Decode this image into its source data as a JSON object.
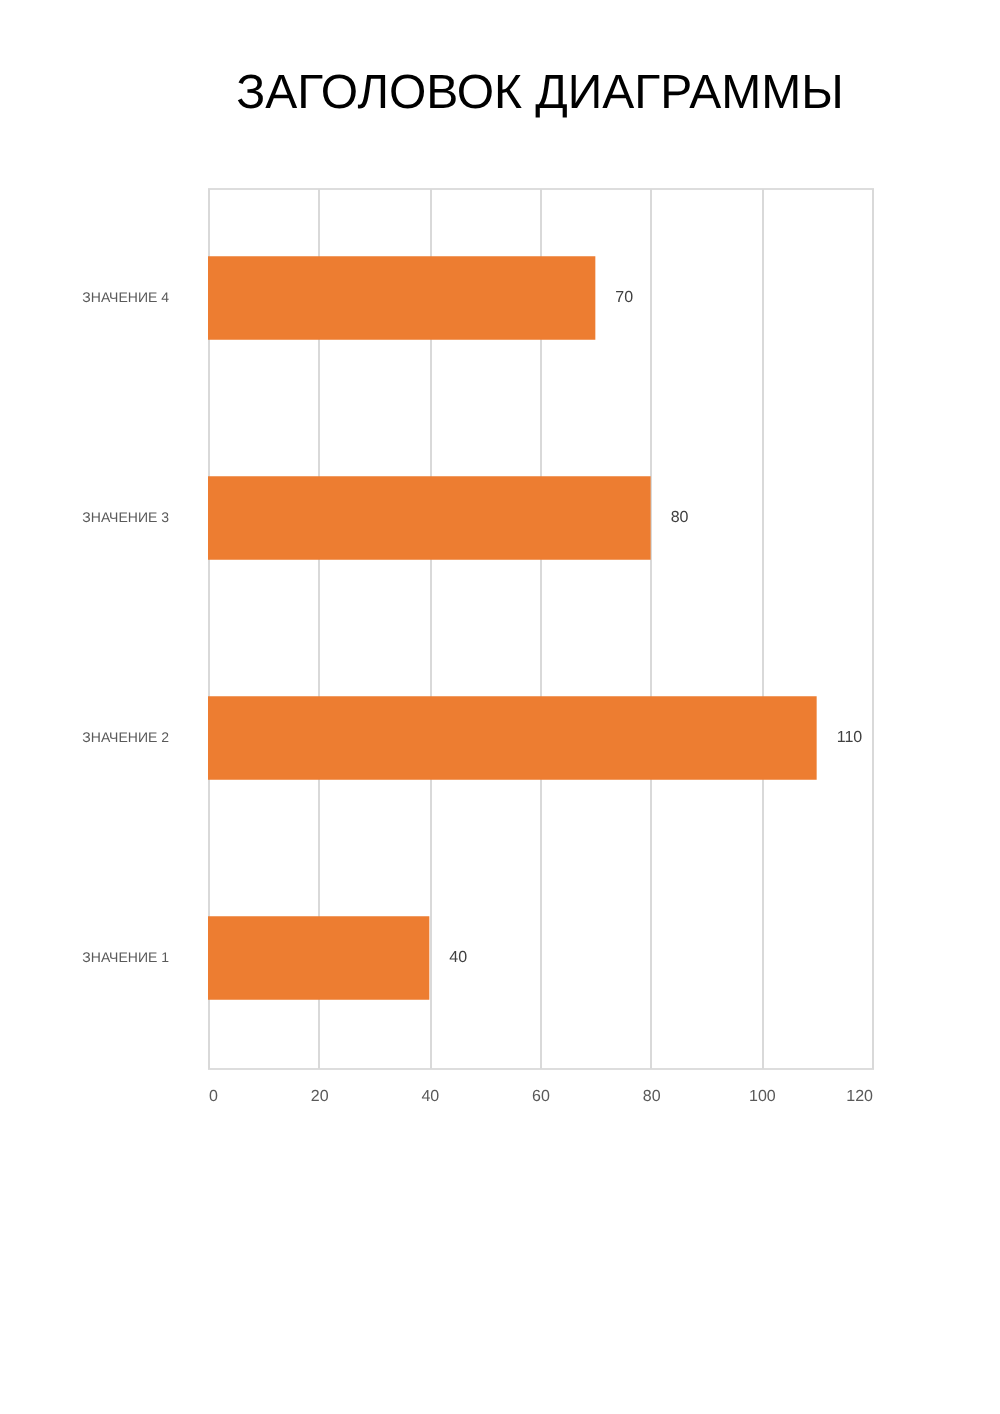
{
  "chart_data": {
    "type": "bar",
    "orientation": "horizontal",
    "title": "ЗАГОЛОВОК ДИАГРАММЫ",
    "categories": [
      "ЗНАЧЕНИЕ 4",
      "ЗНАЧЕНИЕ 3",
      "ЗНАЧЕНИЕ 2",
      "ЗНАЧЕНИЕ 1"
    ],
    "values": [
      70,
      80,
      110,
      40
    ],
    "color": "#ed7d31",
    "xlim": [
      0,
      120
    ],
    "xticks": [
      0,
      20,
      40,
      60,
      80,
      100,
      120
    ],
    "grid": "x",
    "data_labels": true
  }
}
